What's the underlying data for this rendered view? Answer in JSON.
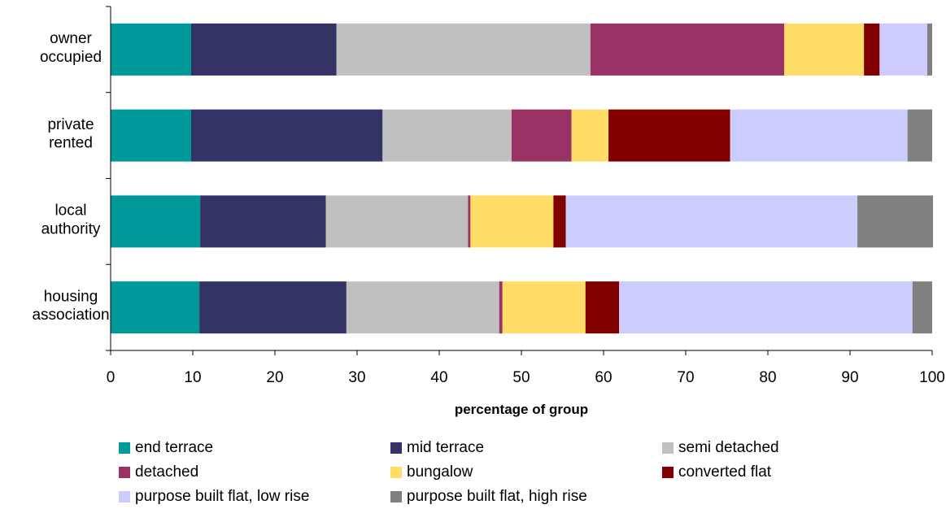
{
  "chart_data": {
    "type": "bar",
    "orientation": "horizontal",
    "stacked": true,
    "categories": [
      [
        "owner",
        "occupied"
      ],
      [
        "private",
        "rented"
      ],
      [
        "local",
        "authority"
      ],
      [
        "housing",
        "association"
      ]
    ],
    "xlabel": "percentage of group",
    "xlim": [
      0,
      100
    ],
    "xticks": [
      "0",
      "10",
      "20",
      "30",
      "40",
      "50",
      "60",
      "70",
      "80",
      "90",
      "100"
    ],
    "grid": false,
    "legend_position": "bottom",
    "series": [
      {
        "name": "end terrace",
        "color": "#009999",
        "values": [
          9.8,
          9.8,
          10.9,
          10.8
        ]
      },
      {
        "name": "mid terrace",
        "color": "#333366",
        "values": [
          17.7,
          23.3,
          15.3,
          17.9
        ]
      },
      {
        "name": "semi detached",
        "color": "#C0C0C0",
        "values": [
          30.9,
          15.7,
          17.3,
          18.6
        ]
      },
      {
        "name": "detached",
        "color": "#993366",
        "values": [
          23.6,
          7.3,
          0.3,
          0.4
        ]
      },
      {
        "name": "bungalow",
        "color": "#FFDD66",
        "values": [
          9.7,
          4.5,
          10.1,
          10.1
        ]
      },
      {
        "name": "converted flat",
        "color": "#800000",
        "values": [
          1.9,
          14.8,
          1.5,
          4.1
        ]
      },
      {
        "name": "purpose built flat, low rise",
        "color": "#CCCCFF",
        "values": [
          5.8,
          21.6,
          35.5,
          35.7
        ]
      },
      {
        "name": "purpose built flat, high rise",
        "color": "#808080",
        "values": [
          0.6,
          3.0,
          9.2,
          2.4
        ]
      }
    ]
  }
}
